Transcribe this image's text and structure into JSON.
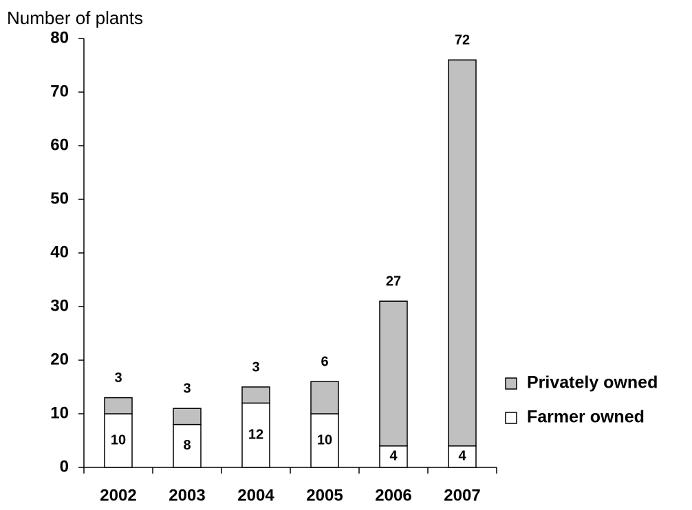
{
  "chart_data": {
    "type": "stacked_bar",
    "y_axis_label": "Number of plants",
    "categories": [
      "2002",
      "2003",
      "2004",
      "2005",
      "2006",
      "2007"
    ],
    "series": [
      {
        "name": "Farmer owned",
        "color": "#ffffff",
        "values": [
          10,
          8,
          12,
          10,
          4,
          4
        ]
      },
      {
        "name": "Privately owned",
        "color": "#c0c0c0",
        "values": [
          3,
          3,
          3,
          6,
          27,
          72
        ]
      }
    ],
    "ylim": [
      0,
      80
    ],
    "yticks": [
      0,
      10,
      20,
      30,
      40,
      50,
      60,
      70,
      80
    ],
    "grid": false,
    "legend": "right"
  }
}
